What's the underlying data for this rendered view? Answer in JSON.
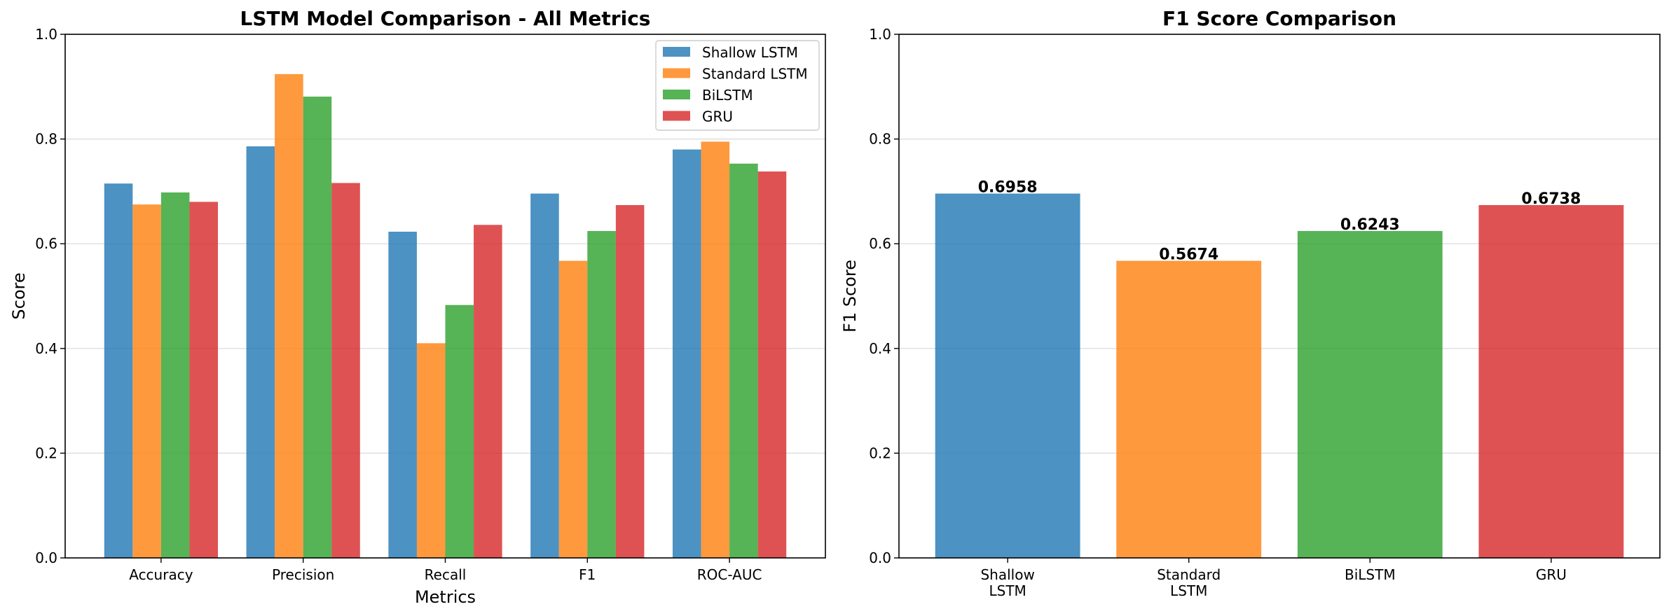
{
  "chart_data": [
    {
      "type": "bar",
      "title": "LSTM Model Comparison - All Metrics",
      "xlabel": "Metrics",
      "ylabel": "Score",
      "ylim": [
        0,
        1.0
      ],
      "yticks": [
        "0.0",
        "0.2",
        "0.4",
        "0.6",
        "0.8",
        "1.0"
      ],
      "grid": "y",
      "legend_placement": "top-right",
      "categories": [
        "Accuracy",
        "Precision",
        "Recall",
        "F1",
        "ROC-AUC"
      ],
      "series": [
        {
          "name": "Shallow LSTM",
          "color": "#1f77b4",
          "values": [
            0.715,
            0.786,
            0.623,
            0.6958,
            0.78
          ]
        },
        {
          "name": "Standard LSTM",
          "color": "#ff7f0e",
          "values": [
            0.675,
            0.924,
            0.41,
            0.5674,
            0.795
          ]
        },
        {
          "name": "BiLSTM",
          "color": "#2ca02c",
          "values": [
            0.698,
            0.881,
            0.483,
            0.6243,
            0.753
          ]
        },
        {
          "name": "GRU",
          "color": "#d62728",
          "values": [
            0.68,
            0.716,
            0.636,
            0.6738,
            0.738
          ]
        }
      ]
    },
    {
      "type": "bar",
      "title": "F1 Score Comparison",
      "xlabel": "",
      "ylabel": "F1 Score",
      "ylim": [
        0,
        1.0
      ],
      "yticks": [
        "0.0",
        "0.2",
        "0.4",
        "0.6",
        "0.8",
        "1.0"
      ],
      "grid": "y",
      "categories": [
        [
          "Shallow",
          "LSTM"
        ],
        [
          "Standard",
          "LSTM"
        ],
        [
          "BiLSTM"
        ],
        [
          "GRU"
        ]
      ],
      "values": [
        0.6958,
        0.5674,
        0.6243,
        0.6738
      ],
      "data_labels": [
        "0.6958",
        "0.5674",
        "0.6243",
        "0.6738"
      ],
      "colors": [
        "#1f77b4",
        "#ff7f0e",
        "#2ca02c",
        "#d62728"
      ]
    }
  ]
}
